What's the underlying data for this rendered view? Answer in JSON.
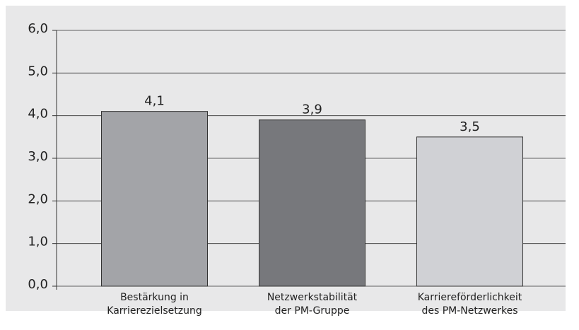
{
  "chart_data": {
    "type": "bar",
    "categories": [
      "Bestärkung in\nKarrierezielsetzung",
      "Netzwerkstabilität\nder PM-Gruppe",
      "Karriereförderlichkeit\ndes PM-Netzwerkes"
    ],
    "values": [
      4.1,
      3.9,
      3.5
    ],
    "value_labels": [
      "4,1",
      "3,9",
      "3,5"
    ],
    "colors": [
      "#a3a4a8",
      "#77787c",
      "#d0d1d5"
    ],
    "ylim": [
      0,
      6
    ],
    "yticks": [
      {
        "value": 0,
        "label": "0,0"
      },
      {
        "value": 1,
        "label": "1,0"
      },
      {
        "value": 2,
        "label": "2,0"
      },
      {
        "value": 3,
        "label": "3,0"
      },
      {
        "value": 4,
        "label": "4,0"
      },
      {
        "value": 5,
        "label": "5,0"
      },
      {
        "value": 6,
        "label": "6,0"
      }
    ],
    "grid": true
  }
}
